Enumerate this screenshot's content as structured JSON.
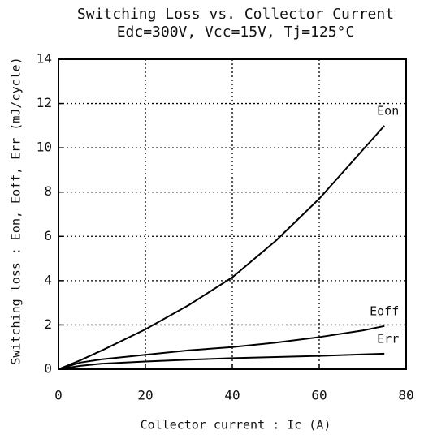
{
  "chart_data": {
    "type": "line",
    "title": "Switching Loss vs. Collector Current",
    "subtitle": "Edc=300V, Vcc=15V, Tj=125°C",
    "x_label": "Collector current : Ic   (A)",
    "y_label": "Switching loss : Eon, Eoff, Err  (mJ/cycle)",
    "x": [
      0,
      5,
      10,
      20,
      30,
      40,
      50,
      60,
      70,
      75
    ],
    "series": [
      {
        "name": "Eon",
        "color": "#000000",
        "values": [
          0,
          0.4,
          0.85,
          1.8,
          2.9,
          4.15,
          5.8,
          7.7,
          9.9,
          11.0
        ]
      },
      {
        "name": "Eoff",
        "color": "#000000",
        "values": [
          0,
          0.3,
          0.45,
          0.65,
          0.85,
          1.0,
          1.2,
          1.45,
          1.75,
          1.95
        ]
      },
      {
        "name": "Err",
        "color": "#000000",
        "values": [
          0,
          0.15,
          0.25,
          0.35,
          0.43,
          0.5,
          0.55,
          0.6,
          0.67,
          0.7
        ]
      }
    ],
    "xlim": [
      0,
      80
    ],
    "xticks": [
      0,
      20,
      40,
      60,
      80
    ],
    "ylim": [
      0,
      14
    ],
    "yticks": [
      0,
      2,
      4,
      6,
      8,
      10,
      12,
      14
    ],
    "grid": true
  }
}
